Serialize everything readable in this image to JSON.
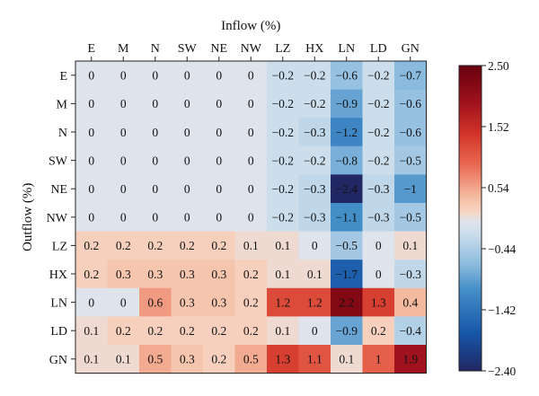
{
  "chart_data": {
    "type": "heatmap",
    "xlabel": "Inflow (%)",
    "ylabel": "Outflow (%)",
    "x_categories": [
      "E",
      "M",
      "N",
      "SW",
      "NE",
      "NW",
      "LZ",
      "HX",
      "LN",
      "LD",
      "GN"
    ],
    "y_categories": [
      "E",
      "M",
      "N",
      "SW",
      "NE",
      "NW",
      "LZ",
      "HX",
      "LN",
      "LD",
      "GN"
    ],
    "values": [
      [
        0,
        0,
        0,
        0,
        0,
        0,
        -0.2,
        -0.2,
        -0.6,
        -0.2,
        -0.7
      ],
      [
        0,
        0,
        0,
        0,
        0,
        0,
        -0.2,
        -0.2,
        -0.9,
        -0.2,
        -0.6
      ],
      [
        0,
        0,
        0,
        0,
        0,
        0,
        -0.2,
        -0.3,
        -1.2,
        -0.2,
        -0.6
      ],
      [
        0,
        0,
        0,
        0,
        0,
        0,
        -0.2,
        -0.2,
        -0.8,
        -0.2,
        -0.5
      ],
      [
        0,
        0,
        0,
        0,
        0,
        0,
        -0.2,
        -0.3,
        -2.4,
        -0.3,
        -1
      ],
      [
        0,
        0,
        0,
        0,
        0,
        0,
        -0.2,
        -0.3,
        -1.1,
        -0.3,
        -0.5
      ],
      [
        0.2,
        0.2,
        0.2,
        0.2,
        0.2,
        0.1,
        0.1,
        0,
        -0.5,
        0,
        0.1
      ],
      [
        0.2,
        0.3,
        0.3,
        0.3,
        0.3,
        0.2,
        0.1,
        0.1,
        -1.7,
        0,
        -0.3
      ],
      [
        0,
        0,
        0.6,
        0.3,
        0.3,
        0.2,
        1.2,
        1.2,
        2.2,
        1.3,
        0.4
      ],
      [
        0.1,
        0.2,
        0.2,
        0.2,
        0.2,
        0.2,
        0.1,
        0,
        -0.9,
        0.2,
        -0.4
      ],
      [
        0.1,
        0.1,
        0.5,
        0.3,
        0.2,
        0.5,
        1.3,
        1.1,
        0.1,
        1,
        1.9
      ]
    ],
    "colorbar": {
      "min": -2.4,
      "max": 2.5,
      "ticks": [
        2.5,
        1.52,
        0.54,
        -0.44,
        -1.42,
        -2.4
      ],
      "tick_labels": [
        "2.50",
        "1.52",
        "0.54",
        "−0.44",
        "−1.42",
        "−2.40"
      ],
      "colormap": "RdBu_r"
    },
    "grid": false
  }
}
